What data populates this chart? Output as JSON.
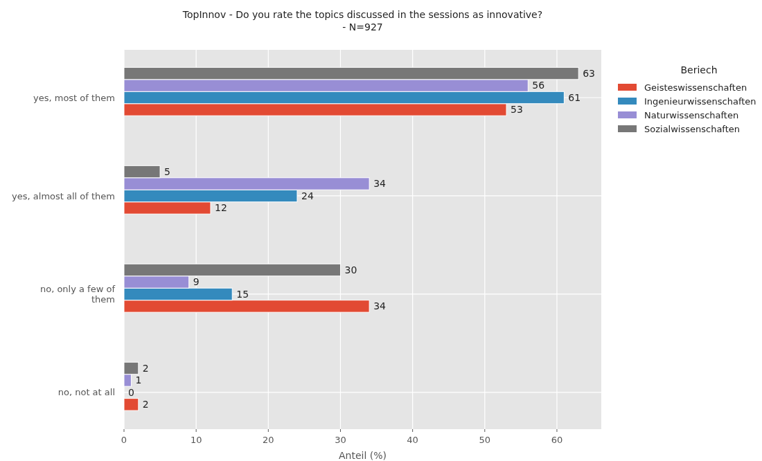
{
  "chart_data": {
    "type": "bar",
    "orientation": "horizontal",
    "title": "TopInnov - Do you rate the topics discussed in the sessions as innovative?\n- N=927",
    "xlabel": "Anteil (%)",
    "legend_title": "Beriech",
    "categories": [
      "yes, most of them",
      "yes, almost all of them",
      "no, only a few of\nthem",
      "no, not at all"
    ],
    "series": [
      {
        "name": "Geisteswissenschaften",
        "color": "#e24a33",
        "values": [
          53,
          12,
          34,
          2
        ]
      },
      {
        "name": "Ingenieurwissenschaften",
        "color": "#348abd",
        "values": [
          61,
          24,
          15,
          0
        ]
      },
      {
        "name": "Naturwissenschaften",
        "color": "#988ed5",
        "values": [
          56,
          34,
          9,
          1
        ]
      },
      {
        "name": "Sozialwissenschaften",
        "color": "#777777",
        "values": [
          63,
          5,
          30,
          2
        ]
      }
    ],
    "xlim": [
      0,
      66.15
    ],
    "xticks": [
      0,
      10,
      20,
      30,
      40,
      50,
      60
    ],
    "grid": true,
    "legend": "right",
    "data_labels": true
  }
}
